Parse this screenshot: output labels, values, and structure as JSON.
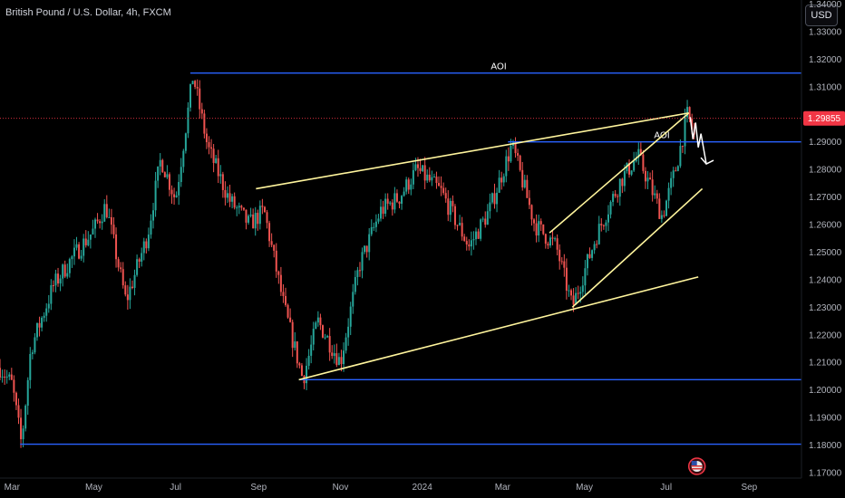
{
  "header": {
    "title": "British Pound / U.S. Dollar, 4h, FXCM",
    "currency_label": "USD"
  },
  "colors": {
    "up": "#26a69a",
    "down": "#ef5350",
    "blue_line": "#2962ff",
    "yellow_line": "#fff59d",
    "arrow": "#ffffff",
    "price_badge": "#f23645",
    "axis_text": "#b2b5be"
  },
  "chart_data": {
    "type": "candlestick",
    "title": "British Pound / U.S. Dollar, 4h, FXCM",
    "y_ticks": [
      "1.17000",
      "1.18000",
      "1.19000",
      "1.20000",
      "1.21000",
      "1.22000",
      "1.23000",
      "1.24000",
      "1.25000",
      "1.26000",
      "1.27000",
      "1.28000",
      "1.29000",
      "1.30000",
      "1.31000",
      "1.32000",
      "1.33000",
      "1.34000"
    ],
    "ylim": [
      1.168,
      1.3415
    ],
    "x_ticks": [
      "Mar",
      "May",
      "Jul",
      "Sep",
      "Nov",
      "2024",
      "Mar",
      "May",
      "Jul",
      "Sep"
    ],
    "xlim": [
      "2023-02-20",
      "2024-10-10"
    ],
    "current_price": "1.29855",
    "price_path": [
      {
        "date": "2023-02-20",
        "price": 1.208
      },
      {
        "date": "2023-03-01",
        "price": 1.202
      },
      {
        "date": "2023-03-08",
        "price": 1.1803
      },
      {
        "date": "2023-03-15",
        "price": 1.215
      },
      {
        "date": "2023-04-01",
        "price": 1.238
      },
      {
        "date": "2023-04-15",
        "price": 1.248
      },
      {
        "date": "2023-05-01",
        "price": 1.258
      },
      {
        "date": "2023-05-10",
        "price": 1.267
      },
      {
        "date": "2023-05-25",
        "price": 1.232
      },
      {
        "date": "2023-06-10",
        "price": 1.256
      },
      {
        "date": "2023-06-20",
        "price": 1.284
      },
      {
        "date": "2023-07-01",
        "price": 1.269
      },
      {
        "date": "2023-07-14",
        "price": 1.3142
      },
      {
        "date": "2023-07-25",
        "price": 1.288
      },
      {
        "date": "2023-08-10",
        "price": 1.269
      },
      {
        "date": "2023-08-25",
        "price": 1.26
      },
      {
        "date": "2023-09-05",
        "price": 1.265
      },
      {
        "date": "2023-09-20",
        "price": 1.23
      },
      {
        "date": "2023-10-04",
        "price": 1.2038
      },
      {
        "date": "2023-10-15",
        "price": 1.225
      },
      {
        "date": "2023-11-01",
        "price": 1.21
      },
      {
        "date": "2023-11-15",
        "price": 1.245
      },
      {
        "date": "2023-12-01",
        "price": 1.265
      },
      {
        "date": "2023-12-15",
        "price": 1.27
      },
      {
        "date": "2023-12-28",
        "price": 1.28
      },
      {
        "date": "2024-01-15",
        "price": 1.272
      },
      {
        "date": "2024-02-05",
        "price": 1.252
      },
      {
        "date": "2024-02-20",
        "price": 1.265
      },
      {
        "date": "2024-03-08",
        "price": 1.289
      },
      {
        "date": "2024-03-25",
        "price": 1.26
      },
      {
        "date": "2024-04-10",
        "price": 1.252
      },
      {
        "date": "2024-04-22",
        "price": 1.23
      },
      {
        "date": "2024-05-10",
        "price": 1.256
      },
      {
        "date": "2024-05-28",
        "price": 1.276
      },
      {
        "date": "2024-06-10",
        "price": 1.285
      },
      {
        "date": "2024-06-28",
        "price": 1.263
      },
      {
        "date": "2024-07-08",
        "price": 1.28
      },
      {
        "date": "2024-07-17",
        "price": 1.3
      },
      {
        "date": "2024-07-22",
        "price": 1.292
      }
    ],
    "horizontal_levels": [
      {
        "name": "AOI",
        "label": "AOI",
        "price": 1.315,
        "from": "2023-07-12",
        "to": "2024-10-10"
      },
      {
        "name": "AOI",
        "label": "AOI",
        "price": 1.29,
        "from": "2024-03-05",
        "to": "2024-10-10"
      },
      {
        "name": "support",
        "label": "",
        "price": 1.2037,
        "from": "2023-10-01",
        "to": "2024-10-10"
      },
      {
        "name": "march-low",
        "label": "",
        "price": 1.1803,
        "from": "2023-03-07",
        "to": "2024-10-10"
      }
    ],
    "trend_lines": [
      {
        "from": {
          "date": "2023-08-30",
          "price": 1.273
        },
        "to": {
          "date": "2024-07-18",
          "price": 1.3005
        }
      },
      {
        "from": {
          "date": "2023-10-01",
          "price": 1.2037
        },
        "to": {
          "date": "2024-07-25",
          "price": 1.241
        }
      },
      {
        "from": {
          "date": "2024-04-05",
          "price": 1.257
        },
        "to": {
          "date": "2024-07-18",
          "price": 1.3005
        }
      },
      {
        "from": {
          "date": "2024-04-22",
          "price": 1.23
        },
        "to": {
          "date": "2024-07-28",
          "price": 1.273
        }
      }
    ],
    "projection": [
      {
        "date": "2024-07-19",
        "price": 1.299
      },
      {
        "date": "2024-07-21",
        "price": 1.291
      },
      {
        "date": "2024-07-23",
        "price": 1.297
      },
      {
        "date": "2024-07-25",
        "price": 1.288
      },
      {
        "date": "2024-07-27",
        "price": 1.293
      },
      {
        "date": "2024-07-31",
        "price": 1.282
      }
    ],
    "grid": false
  }
}
